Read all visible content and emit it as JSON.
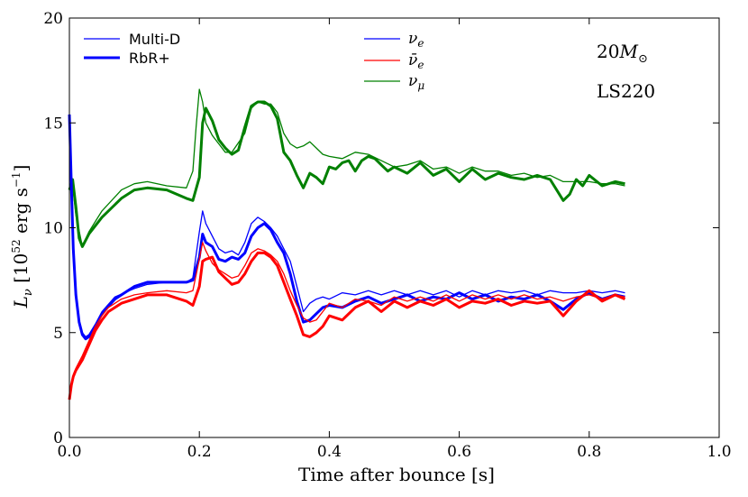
{
  "chart_data": {
    "type": "line",
    "title": "",
    "xlabel": "Time after bounce [s]",
    "ylabel": "L_ν [10^52 erg s^-1]",
    "ylabel_parts": {
      "sym": "L",
      "sub": "ν",
      "open": " [10",
      "exp": "52",
      "mid": " erg s",
      "exp2": "−1",
      "close": "]"
    },
    "xlim": [
      0.0,
      1.0
    ],
    "ylim": [
      0,
      20
    ],
    "xticks": [
      "0.0",
      "0.2",
      "0.4",
      "0.6",
      "0.8",
      "1.0"
    ],
    "yticks": [
      "0",
      "5",
      "10",
      "15",
      "20"
    ],
    "legend_style": [
      {
        "label": "Multi-D",
        "width": 1.3,
        "color": "#0000ff"
      },
      {
        "label": "RbR+",
        "width": 3,
        "color": "#0000ff"
      }
    ],
    "legend_flavor": [
      {
        "label": "ν_e",
        "base": "ν",
        "sub": "e",
        "color": "#0000ff"
      },
      {
        "label": "ν̄_e",
        "base": "ν̄",
        "sub": "e",
        "color": "#ff0000"
      },
      {
        "label": "ν_μ",
        "base": "ν",
        "sub": "μ",
        "color": "#008000"
      }
    ],
    "annotations": [
      {
        "text": "20M⊙",
        "num": "20",
        "sym": "M",
        "sub": "⊙"
      },
      {
        "text": "LS220"
      }
    ],
    "series": [
      {
        "name": "nu_mu RbR+",
        "color": "#008000",
        "width": 3,
        "x": [
          0.0,
          0.005,
          0.01,
          0.015,
          0.02,
          0.03,
          0.05,
          0.08,
          0.1,
          0.12,
          0.15,
          0.18,
          0.19,
          0.2,
          0.205,
          0.21,
          0.22,
          0.23,
          0.24,
          0.25,
          0.26,
          0.27,
          0.28,
          0.29,
          0.3,
          0.31,
          0.32,
          0.33,
          0.34,
          0.35,
          0.36,
          0.37,
          0.38,
          0.39,
          0.4,
          0.41,
          0.42,
          0.43,
          0.44,
          0.45,
          0.46,
          0.47,
          0.48,
          0.49,
          0.5,
          0.52,
          0.54,
          0.56,
          0.58,
          0.6,
          0.62,
          0.64,
          0.66,
          0.68,
          0.7,
          0.72,
          0.74,
          0.76,
          0.77,
          0.78,
          0.79,
          0.8,
          0.82,
          0.84,
          0.855
        ],
        "y": [
          11.8,
          12.3,
          11.0,
          9.5,
          9.1,
          9.7,
          10.5,
          11.4,
          11.8,
          11.9,
          11.8,
          11.4,
          11.3,
          12.4,
          15.0,
          15.7,
          15.1,
          14.2,
          13.8,
          13.5,
          13.7,
          14.8,
          15.8,
          16.0,
          16.0,
          15.8,
          15.2,
          13.6,
          13.2,
          12.5,
          11.9,
          12.6,
          12.4,
          12.1,
          12.9,
          12.8,
          13.1,
          13.2,
          12.7,
          13.2,
          13.4,
          13.3,
          13.0,
          12.7,
          12.9,
          12.6,
          13.1,
          12.5,
          12.8,
          12.2,
          12.8,
          12.3,
          12.6,
          12.4,
          12.3,
          12.5,
          12.3,
          11.3,
          11.6,
          12.3,
          12.0,
          12.5,
          12.0,
          12.2,
          12.1
        ]
      },
      {
        "name": "nu_mu Multi-D",
        "color": "#008000",
        "width": 1.3,
        "x": [
          0.0,
          0.005,
          0.01,
          0.02,
          0.03,
          0.05,
          0.08,
          0.1,
          0.12,
          0.15,
          0.18,
          0.19,
          0.195,
          0.2,
          0.205,
          0.21,
          0.22,
          0.23,
          0.24,
          0.25,
          0.27,
          0.28,
          0.29,
          0.3,
          0.31,
          0.32,
          0.33,
          0.34,
          0.35,
          0.36,
          0.37,
          0.38,
          0.39,
          0.4,
          0.42,
          0.44,
          0.46,
          0.48,
          0.5,
          0.52,
          0.54,
          0.56,
          0.58,
          0.6,
          0.62,
          0.64,
          0.66,
          0.68,
          0.7,
          0.72,
          0.74,
          0.76,
          0.78,
          0.8,
          0.82,
          0.84,
          0.855
        ],
        "y": [
          11.8,
          12.0,
          10.6,
          9.1,
          9.8,
          10.8,
          11.8,
          12.1,
          12.2,
          12.0,
          11.9,
          12.7,
          14.8,
          16.6,
          16.0,
          15.0,
          14.4,
          14.0,
          13.6,
          13.6,
          14.5,
          15.7,
          16.0,
          15.9,
          15.9,
          15.5,
          14.5,
          14.0,
          13.8,
          13.9,
          14.1,
          13.8,
          13.5,
          13.4,
          13.3,
          13.6,
          13.5,
          13.2,
          12.9,
          13.0,
          13.2,
          12.8,
          12.9,
          12.6,
          12.9,
          12.7,
          12.7,
          12.5,
          12.6,
          12.4,
          12.5,
          12.2,
          12.2,
          12.2,
          12.1,
          12.1,
          12.0
        ]
      },
      {
        "name": "nu_e RbR+",
        "color": "#0000ff",
        "width": 3,
        "x": [
          0.0,
          0.003,
          0.006,
          0.01,
          0.015,
          0.02,
          0.025,
          0.03,
          0.04,
          0.05,
          0.07,
          0.09,
          0.1,
          0.12,
          0.15,
          0.18,
          0.19,
          0.2,
          0.205,
          0.21,
          0.22,
          0.23,
          0.24,
          0.25,
          0.26,
          0.27,
          0.28,
          0.29,
          0.3,
          0.31,
          0.32,
          0.33,
          0.34,
          0.35,
          0.36,
          0.37,
          0.38,
          0.39,
          0.4,
          0.42,
          0.44,
          0.46,
          0.48,
          0.5,
          0.52,
          0.54,
          0.56,
          0.58,
          0.6,
          0.62,
          0.64,
          0.66,
          0.68,
          0.7,
          0.72,
          0.74,
          0.76,
          0.78,
          0.8,
          0.82,
          0.84,
          0.855
        ],
        "y": [
          15.4,
          12.0,
          9.0,
          6.8,
          5.5,
          4.9,
          4.7,
          4.8,
          5.3,
          5.9,
          6.6,
          7.0,
          7.2,
          7.4,
          7.4,
          7.4,
          7.5,
          8.6,
          9.7,
          9.3,
          9.1,
          8.5,
          8.4,
          8.6,
          8.5,
          8.8,
          9.6,
          10.0,
          10.2,
          9.9,
          9.3,
          8.8,
          7.8,
          6.5,
          5.5,
          5.6,
          5.9,
          6.2,
          6.3,
          6.2,
          6.5,
          6.7,
          6.4,
          6.6,
          6.8,
          6.5,
          6.7,
          6.6,
          6.9,
          6.6,
          6.8,
          6.5,
          6.7,
          6.6,
          6.8,
          6.5,
          6.1,
          6.6,
          6.9,
          6.6,
          6.8,
          6.7
        ]
      },
      {
        "name": "nu_e Multi-D",
        "color": "#0000ff",
        "width": 1.3,
        "x": [
          0.0,
          0.003,
          0.006,
          0.01,
          0.015,
          0.02,
          0.025,
          0.03,
          0.04,
          0.05,
          0.07,
          0.1,
          0.12,
          0.15,
          0.18,
          0.19,
          0.2,
          0.205,
          0.21,
          0.22,
          0.23,
          0.24,
          0.25,
          0.26,
          0.27,
          0.28,
          0.29,
          0.3,
          0.31,
          0.32,
          0.33,
          0.34,
          0.35,
          0.36,
          0.37,
          0.38,
          0.39,
          0.4,
          0.42,
          0.44,
          0.46,
          0.48,
          0.5,
          0.52,
          0.54,
          0.56,
          0.58,
          0.6,
          0.62,
          0.64,
          0.66,
          0.68,
          0.7,
          0.72,
          0.74,
          0.76,
          0.78,
          0.8,
          0.82,
          0.84,
          0.855
        ],
        "y": [
          15.2,
          12.0,
          9.2,
          7.0,
          5.6,
          5.0,
          4.8,
          4.9,
          5.4,
          6.0,
          6.7,
          7.1,
          7.3,
          7.4,
          7.4,
          7.6,
          9.8,
          10.8,
          10.2,
          9.6,
          9.0,
          8.8,
          8.9,
          8.7,
          9.3,
          10.2,
          10.5,
          10.3,
          10.0,
          9.6,
          9.0,
          8.4,
          7.2,
          6.0,
          6.4,
          6.6,
          6.7,
          6.6,
          6.9,
          6.8,
          7.0,
          6.8,
          7.0,
          6.8,
          7.0,
          6.8,
          7.0,
          6.7,
          7.0,
          6.8,
          7.0,
          6.9,
          7.0,
          6.8,
          7.0,
          6.9,
          6.9,
          7.0,
          6.9,
          7.0,
          6.9
        ]
      },
      {
        "name": "anti-nu_e RbR+",
        "color": "#ff0000",
        "width": 3,
        "x": [
          0.0,
          0.003,
          0.006,
          0.01,
          0.02,
          0.03,
          0.04,
          0.05,
          0.06,
          0.08,
          0.1,
          0.12,
          0.15,
          0.18,
          0.19,
          0.2,
          0.205,
          0.21,
          0.22,
          0.23,
          0.24,
          0.25,
          0.26,
          0.27,
          0.28,
          0.29,
          0.3,
          0.31,
          0.32,
          0.33,
          0.34,
          0.35,
          0.36,
          0.37,
          0.38,
          0.39,
          0.4,
          0.42,
          0.44,
          0.46,
          0.48,
          0.5,
          0.52,
          0.54,
          0.56,
          0.58,
          0.6,
          0.62,
          0.64,
          0.66,
          0.68,
          0.7,
          0.72,
          0.74,
          0.76,
          0.78,
          0.8,
          0.82,
          0.84,
          0.855
        ],
        "y": [
          1.8,
          2.5,
          2.9,
          3.2,
          3.7,
          4.4,
          5.1,
          5.6,
          6.0,
          6.4,
          6.6,
          6.8,
          6.8,
          6.5,
          6.3,
          7.2,
          8.4,
          8.5,
          8.6,
          7.9,
          7.6,
          7.3,
          7.4,
          7.8,
          8.4,
          8.8,
          8.8,
          8.6,
          8.2,
          7.4,
          6.6,
          5.8,
          4.9,
          4.8,
          5.0,
          5.3,
          5.8,
          5.6,
          6.2,
          6.5,
          6.0,
          6.5,
          6.2,
          6.5,
          6.3,
          6.6,
          6.2,
          6.5,
          6.4,
          6.6,
          6.3,
          6.5,
          6.4,
          6.5,
          5.8,
          6.5,
          7.0,
          6.5,
          6.8,
          6.6
        ]
      },
      {
        "name": "anti-nu_e Multi-D",
        "color": "#ff0000",
        "width": 1.3,
        "x": [
          0.0,
          0.003,
          0.006,
          0.01,
          0.02,
          0.03,
          0.04,
          0.05,
          0.06,
          0.08,
          0.1,
          0.12,
          0.15,
          0.18,
          0.19,
          0.2,
          0.205,
          0.21,
          0.22,
          0.23,
          0.24,
          0.25,
          0.26,
          0.27,
          0.28,
          0.29,
          0.3,
          0.31,
          0.32,
          0.33,
          0.34,
          0.35,
          0.36,
          0.37,
          0.38,
          0.39,
          0.4,
          0.42,
          0.44,
          0.46,
          0.48,
          0.5,
          0.52,
          0.54,
          0.56,
          0.58,
          0.6,
          0.62,
          0.64,
          0.66,
          0.68,
          0.7,
          0.72,
          0.74,
          0.76,
          0.78,
          0.8,
          0.82,
          0.84,
          0.855
        ],
        "y": [
          1.9,
          2.6,
          3.0,
          3.3,
          3.9,
          4.6,
          5.3,
          5.8,
          6.2,
          6.6,
          6.8,
          6.9,
          7.0,
          6.9,
          7.0,
          8.5,
          9.3,
          8.9,
          8.3,
          8.0,
          7.8,
          7.6,
          7.7,
          8.2,
          8.8,
          9.0,
          8.9,
          8.7,
          8.4,
          7.8,
          7.0,
          6.3,
          5.7,
          5.5,
          5.6,
          6.0,
          6.4,
          6.2,
          6.6,
          6.5,
          6.3,
          6.7,
          6.5,
          6.7,
          6.5,
          6.8,
          6.5,
          6.8,
          6.6,
          6.8,
          6.6,
          6.8,
          6.6,
          6.7,
          6.5,
          6.7,
          6.8,
          6.6,
          6.8,
          6.7
        ]
      }
    ]
  }
}
